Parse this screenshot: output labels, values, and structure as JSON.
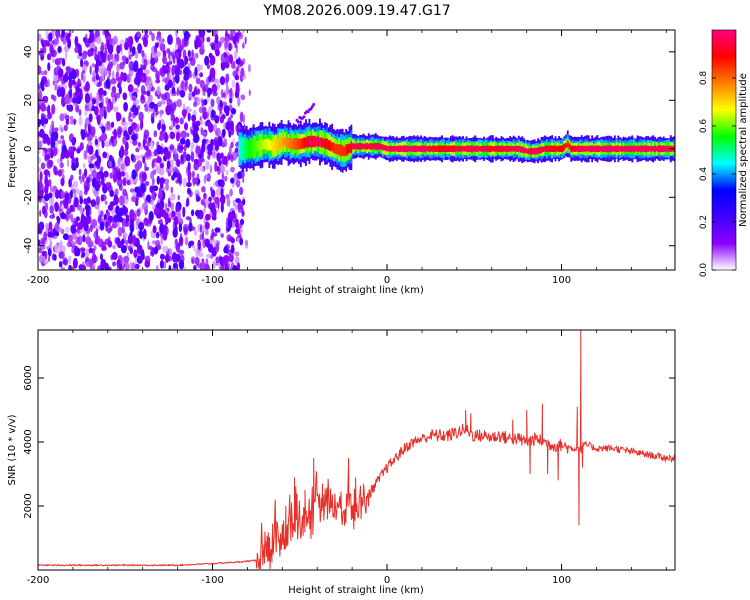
{
  "title": "YM08.2026.009.19.47.G17",
  "colorbar": {
    "label": "Normalized spectral amplitude",
    "ticks": [
      "0.0",
      "0.2",
      "0.4",
      "0.6",
      "0.8"
    ],
    "stops": [
      "#ffffff",
      "#8b00ff",
      "#3f00ff",
      "#0000ff",
      "#00ffff",
      "#00ff00",
      "#ffff00",
      "#ff7f00",
      "#ff0000",
      "#ff0080"
    ]
  },
  "chart_data": [
    {
      "type": "heatmap",
      "title": "YM08.2026.009.19.47.G17",
      "xlabel": "Height of straight line (km)",
      "ylabel": "Frequency (Hz)",
      "xlim": [
        -200,
        165
      ],
      "ylim": [
        -50,
        49
      ],
      "xticks": [
        "-200",
        "-100",
        "0",
        "100"
      ],
      "yticks": [
        "-40",
        "-20",
        "0",
        "20",
        "40"
      ],
      "noise_region_x": [
        -200,
        -82
      ],
      "ridge": {
        "x": [
          -85,
          -80,
          -75,
          -70,
          -65,
          -60,
          -55,
          -50,
          -45,
          -40,
          -35,
          -30,
          -25,
          -20,
          -15,
          -10,
          -5,
          0,
          10,
          20,
          30,
          40,
          50,
          60,
          70,
          75,
          80,
          85,
          90,
          95,
          100,
          103,
          105,
          110,
          120,
          130,
          140,
          150,
          165
        ],
        "freq": [
          0,
          0,
          1,
          2,
          1,
          3,
          2,
          2,
          3,
          3,
          2,
          0,
          -1,
          1,
          1,
          1,
          1,
          0,
          0,
          0,
          0,
          0,
          0,
          0,
          0,
          0,
          -1,
          -1,
          0,
          0,
          0,
          2,
          0,
          0,
          0,
          0,
          0,
          0,
          0
        ],
        "amplitude": [
          0.45,
          0.55,
          0.6,
          0.65,
          0.7,
          0.75,
          0.8,
          0.85,
          0.95,
          0.95,
          0.9,
          0.85,
          0.85,
          0.95,
          0.95,
          0.95,
          0.95,
          0.97,
          0.97,
          0.97,
          0.9,
          0.95,
          0.97,
          0.92,
          0.95,
          0.97,
          0.95,
          0.97,
          0.95,
          0.9,
          0.9,
          0.85,
          0.9,
          0.97,
          0.97,
          0.97,
          0.97,
          0.97,
          0.97
        ]
      }
    },
    {
      "type": "line",
      "xlabel": "Height of straight line (km)",
      "ylabel": "SNR (10 * v/v)",
      "xlim": [
        -200,
        165
      ],
      "ylim": [
        0,
        7500
      ],
      "xticks": [
        "-200",
        "-100",
        "0",
        "100"
      ],
      "yticks": [
        "2000",
        "4000",
        "6000"
      ],
      "series": [
        {
          "name": "SNR",
          "color": "#e8302a",
          "x": [
            -200,
            -180,
            -160,
            -140,
            -120,
            -100,
            -85,
            -75,
            -70,
            -65,
            -60,
            -55,
            -50,
            -45,
            -40,
            -35,
            -30,
            -25,
            -20,
            -15,
            -10,
            -5,
            0,
            5,
            10,
            15,
            20,
            25,
            30,
            35,
            40,
            45,
            50,
            55,
            60,
            65,
            70,
            75,
            80,
            85,
            90,
            95,
            100,
            105,
            108,
            110,
            111,
            112,
            115,
            120,
            130,
            140,
            150,
            160,
            165
          ],
          "y": [
            150,
            150,
            150,
            150,
            150,
            200,
            250,
            300,
            400,
            700,
            1000,
            1300,
            1400,
            1700,
            1900,
            2100,
            2000,
            1900,
            2000,
            2100,
            2400,
            2800,
            3200,
            3500,
            3800,
            4000,
            4100,
            4200,
            4200,
            4200,
            4300,
            4400,
            4200,
            4200,
            4150,
            4200,
            4100,
            4100,
            4000,
            4100,
            4000,
            3900,
            3900,
            3800,
            3800,
            3800,
            3700,
            3900,
            3900,
            3800,
            3800,
            3700,
            3600,
            3500,
            3500
          ],
          "spikes": [
            {
              "x": -70,
              "y": 1200
            },
            {
              "x": -64,
              "y": 2200
            },
            {
              "x": -58,
              "y": 2000
            },
            {
              "x": -53,
              "y": 2900
            },
            {
              "x": -47,
              "y": 2500
            },
            {
              "x": -42,
              "y": 3500
            },
            {
              "x": -37,
              "y": 2700
            },
            {
              "x": -22,
              "y": 3500
            },
            {
              "x": -18,
              "y": 2900
            },
            {
              "x": 45,
              "y": 5000
            },
            {
              "x": 48,
              "y": 4900
            },
            {
              "x": 72,
              "y": 4700
            },
            {
              "x": 80,
              "y": 5000
            },
            {
              "x": 82,
              "y": 3000
            },
            {
              "x": 89,
              "y": 5200
            },
            {
              "x": 92,
              "y": 3000
            },
            {
              "x": 98,
              "y": 2800
            },
            {
              "x": 109,
              "y": 5100
            },
            {
              "x": 110,
              "y": 1400
            },
            {
              "x": 111,
              "y": 7500
            },
            {
              "x": 112,
              "y": 3200
            }
          ]
        }
      ]
    }
  ]
}
